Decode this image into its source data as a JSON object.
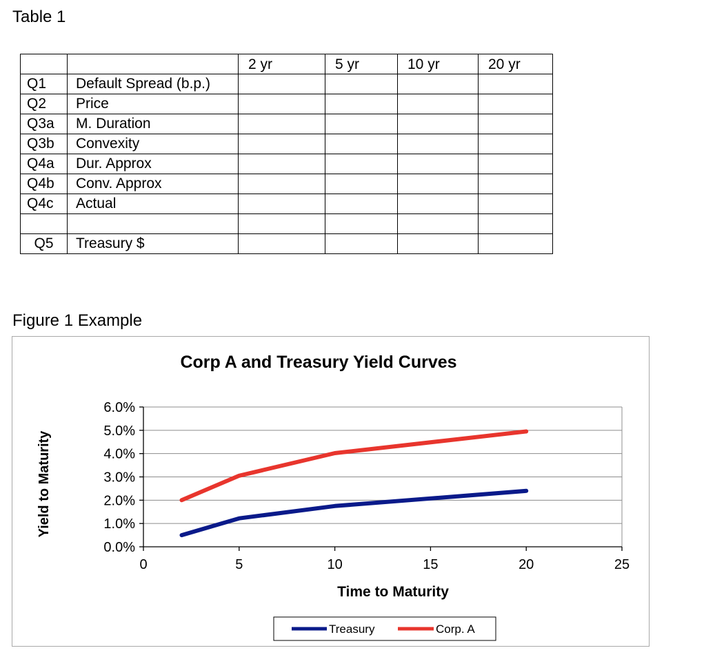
{
  "table_caption": "Table 1",
  "figure_caption": "Figure 1 Example",
  "table": {
    "columns": [
      "2 yr",
      "5 yr",
      "10 yr",
      "20 yr"
    ],
    "rows": [
      {
        "id": "Q1",
        "label": "Default Spread (b.p.)",
        "values": [
          "",
          "",
          "",
          ""
        ]
      },
      {
        "id": "Q2",
        "label": "Price",
        "values": [
          "",
          "",
          "",
          ""
        ]
      },
      {
        "id": "Q3a",
        "label": "M. Duration",
        "values": [
          "",
          "",
          "",
          ""
        ]
      },
      {
        "id": "Q3b",
        "label": "Convexity",
        "values": [
          "",
          "",
          "",
          ""
        ]
      },
      {
        "id": "Q4a",
        "label": "Dur. Approx",
        "values": [
          "",
          "",
          "",
          ""
        ]
      },
      {
        "id": "Q4b",
        "label": "Conv. Approx",
        "values": [
          "",
          "",
          "",
          ""
        ]
      },
      {
        "id": "Q4c",
        "label": "Actual",
        "values": [
          "",
          "",
          "",
          ""
        ]
      },
      {
        "id": "",
        "label": "",
        "values": [
          "",
          "",
          "",
          ""
        ]
      },
      {
        "id": "Q5",
        "label": "Treasury $",
        "values": [
          "",
          "",
          "",
          ""
        ]
      }
    ]
  },
  "chart_data": {
    "type": "line",
    "title": "Corp A and Treasury Yield Curves",
    "xlabel": "Time to Maturity",
    "ylabel": "Yield to Maturity",
    "xlim": [
      0,
      25
    ],
    "ylim": [
      0,
      0.06
    ],
    "x_ticks": [
      0,
      5,
      10,
      15,
      20,
      25
    ],
    "y_ticks": [
      0,
      0.01,
      0.02,
      0.03,
      0.04,
      0.05,
      0.06
    ],
    "y_tick_labels": [
      "0.0%",
      "1.0%",
      "2.0%",
      "3.0%",
      "4.0%",
      "5.0%",
      "6.0%"
    ],
    "grid": "horizontal",
    "legend": "bottom",
    "series": [
      {
        "name": "Treasury",
        "color": "#0a1a8a",
        "x": [
          2,
          5,
          10,
          20
        ],
        "y": [
          0.005,
          0.0122,
          0.0175,
          0.024
        ]
      },
      {
        "name": "Corp. A",
        "color": "#e8352d",
        "x": [
          2,
          5,
          10,
          20
        ],
        "y": [
          0.02,
          0.0305,
          0.0402,
          0.0495
        ]
      }
    ]
  }
}
